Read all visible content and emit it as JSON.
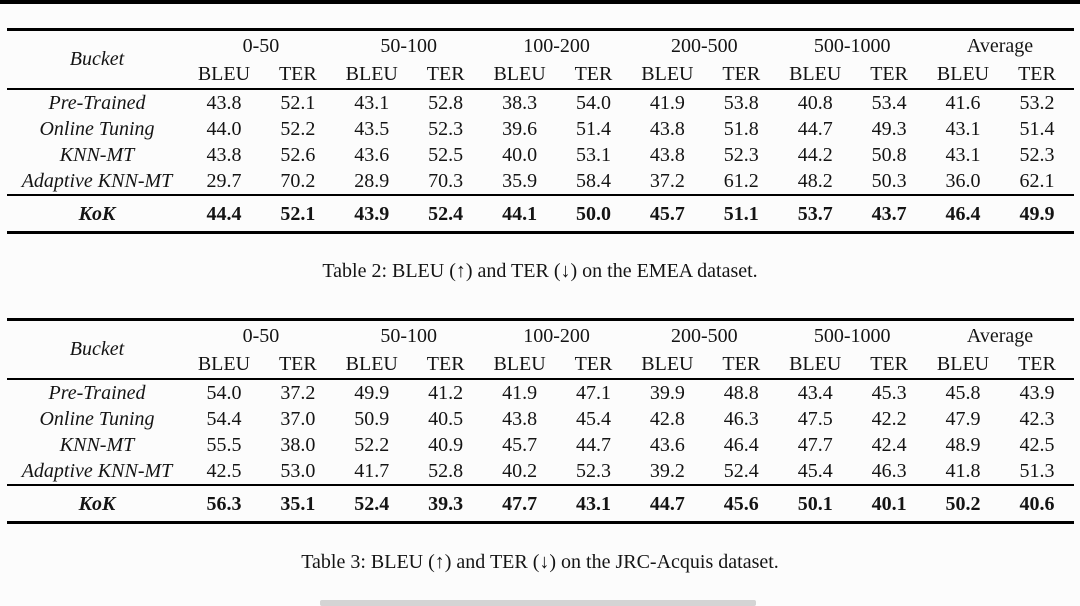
{
  "page": {
    "background": "#fcfcfc",
    "text_color": "#141414",
    "top_bar_color": "#000000"
  },
  "tables": [
    {
      "id": "emea",
      "caption": "Table 2: BLEU (↑) and TER (↓) on the EMEA dataset.",
      "corner_label": "Bucket",
      "column_groups": [
        "0-50",
        "50-100",
        "100-200",
        "200-500",
        "500-1000",
        "Average"
      ],
      "subcolumns": [
        "BLEU",
        "TER"
      ],
      "rows": [
        {
          "label": "Pre-Trained",
          "values": [
            "43.8",
            "52.1",
            "43.1",
            "52.8",
            "38.3",
            "54.0",
            "41.9",
            "53.8",
            "40.8",
            "53.4",
            "41.6",
            "53.2"
          ],
          "bold_cells": [
            1
          ]
        },
        {
          "label": "Online Tuning",
          "values": [
            "44.0",
            "52.2",
            "43.5",
            "52.3",
            "39.6",
            "51.4",
            "43.8",
            "51.8",
            "44.7",
            "49.3",
            "43.1",
            "51.4"
          ],
          "bold_cells": []
        },
        {
          "label": "KNN-MT",
          "values": [
            "43.8",
            "52.6",
            "43.6",
            "52.5",
            "40.0",
            "53.1",
            "43.8",
            "52.3",
            "44.2",
            "50.8",
            "43.1",
            "52.3"
          ],
          "bold_cells": []
        },
        {
          "label": "Adaptive KNN-MT",
          "values": [
            "29.7",
            "70.2",
            "28.9",
            "70.3",
            "35.9",
            "58.4",
            "37.2",
            "61.2",
            "48.2",
            "50.3",
            "36.0",
            "62.1"
          ],
          "bold_cells": []
        },
        {
          "label": "KoK",
          "values": [
            "44.4",
            "52.1",
            "43.9",
            "52.4",
            "44.1",
            "50.0",
            "45.7",
            "51.1",
            "53.7",
            "43.7",
            "46.4",
            "49.9"
          ],
          "bold_cells": [
            0,
            1,
            2,
            3,
            4,
            5,
            6,
            7,
            8,
            9,
            10,
            11
          ],
          "result": true
        }
      ]
    },
    {
      "id": "jrc-acquis",
      "caption": "Table 3: BLEU (↑) and TER (↓) on the JRC-Acquis dataset.",
      "corner_label": "Bucket",
      "column_groups": [
        "0-50",
        "50-100",
        "100-200",
        "200-500",
        "500-1000",
        "Average"
      ],
      "subcolumns": [
        "BLEU",
        "TER"
      ],
      "rows": [
        {
          "label": "Pre-Trained",
          "values": [
            "54.0",
            "37.2",
            "49.9",
            "41.2",
            "41.9",
            "47.1",
            "39.9",
            "48.8",
            "43.4",
            "45.3",
            "45.8",
            "43.9"
          ],
          "bold_cells": []
        },
        {
          "label": "Online Tuning",
          "values": [
            "54.4",
            "37.0",
            "50.9",
            "40.5",
            "43.8",
            "45.4",
            "42.8",
            "46.3",
            "47.5",
            "42.2",
            "47.9",
            "42.3"
          ],
          "bold_cells": []
        },
        {
          "label": "KNN-MT",
          "values": [
            "55.5",
            "38.0",
            "52.2",
            "40.9",
            "45.7",
            "44.7",
            "43.6",
            "46.4",
            "47.7",
            "42.4",
            "48.9",
            "42.5"
          ],
          "bold_cells": []
        },
        {
          "label": "Adaptive KNN-MT",
          "values": [
            "42.5",
            "53.0",
            "41.7",
            "52.8",
            "40.2",
            "52.3",
            "39.2",
            "52.4",
            "45.4",
            "46.3",
            "41.8",
            "51.3"
          ],
          "bold_cells": []
        },
        {
          "label": "KoK",
          "values": [
            "56.3",
            "35.1",
            "52.4",
            "39.3",
            "47.7",
            "43.1",
            "44.7",
            "45.6",
            "50.1",
            "40.1",
            "50.2",
            "40.6"
          ],
          "bold_cells": [
            0,
            1,
            2,
            3,
            4,
            5,
            6,
            7,
            8,
            9,
            10,
            11
          ],
          "result": true
        }
      ]
    }
  ]
}
